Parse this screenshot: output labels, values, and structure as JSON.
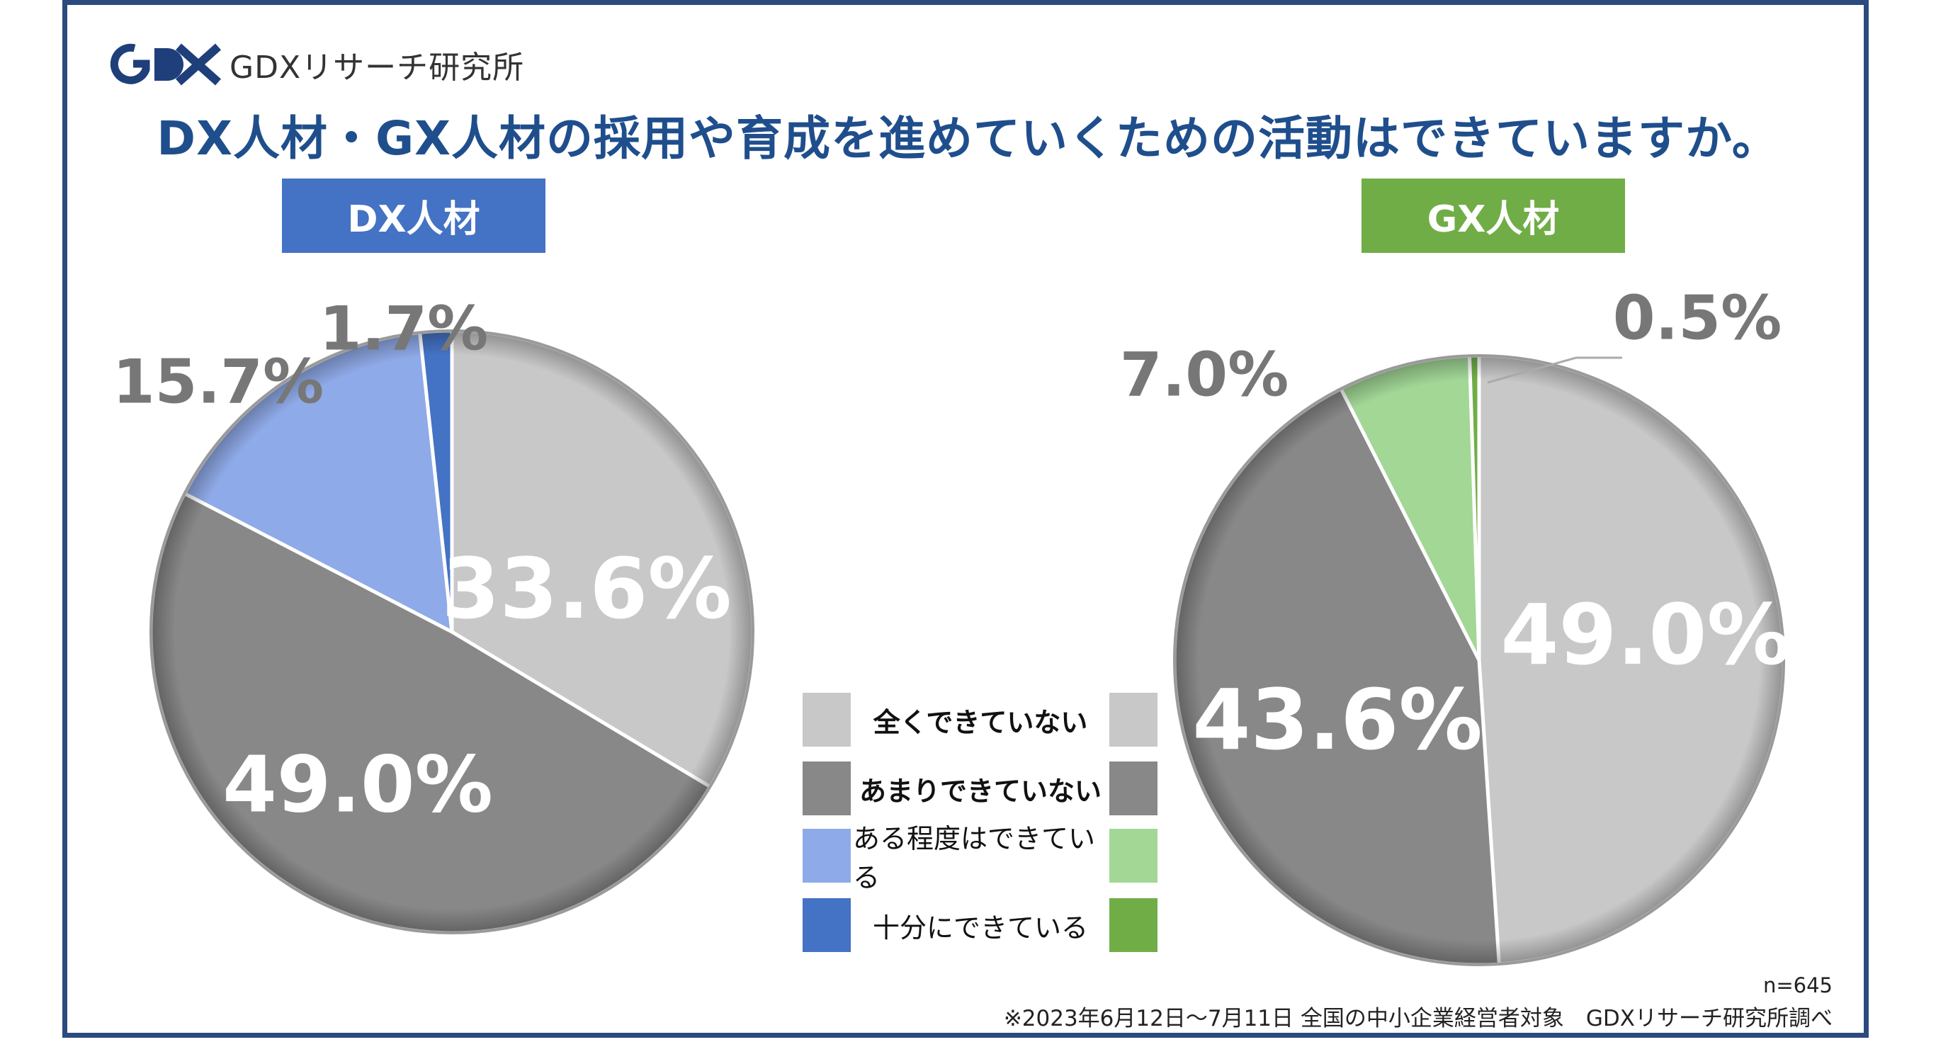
{
  "logo": {
    "text": "GDXリサーチ研究所",
    "mark_text": "GDX"
  },
  "title": "DX人材・GX人材の採用や育成を進めていくための活動はできていますか。",
  "chart_data": [
    {
      "type": "pie",
      "title": "DX人材",
      "header_color": "#4472c4",
      "categories": [
        "全くできていない",
        "あまりできていない",
        "ある程度はできている",
        "十分にできている"
      ],
      "values": [
        33.6,
        49.0,
        15.7,
        1.7
      ],
      "labels": [
        "33.6%",
        "49.0%",
        "15.7%",
        "1.7%"
      ],
      "colors": [
        "#c8c8c8",
        "#888888",
        "#8faae8",
        "#4472c4"
      ]
    },
    {
      "type": "pie",
      "title": "GX人材",
      "header_color": "#70ad47",
      "categories": [
        "全くできていない",
        "あまりできていない",
        "ある程度はできている",
        "十分にできている"
      ],
      "values": [
        49.0,
        43.6,
        7.0,
        0.5
      ],
      "labels": [
        "49.0%",
        "43.6%",
        "7.0%",
        "0.5%"
      ],
      "colors": [
        "#c8c8c8",
        "#888888",
        "#a2d796",
        "#70ad47"
      ]
    }
  ],
  "legend": {
    "items": [
      {
        "label": "全くできていない",
        "bold": true,
        "left_color": "#c8c8c8",
        "right_color": "#c8c8c8"
      },
      {
        "label": "あまりできていない",
        "bold": true,
        "left_color": "#888888",
        "right_color": "#888888"
      },
      {
        "label": "ある程度はできている",
        "bold": false,
        "left_color": "#8faae8",
        "right_color": "#a2d796"
      },
      {
        "label": "十分にできている",
        "bold": false,
        "left_color": "#4472c4",
        "right_color": "#70ad47"
      }
    ]
  },
  "sample_size": "n=645",
  "footnote": "※2023年6月12日～7月11日 全国の中小企業経営者対象　GDXリサーチ研究所調べ"
}
